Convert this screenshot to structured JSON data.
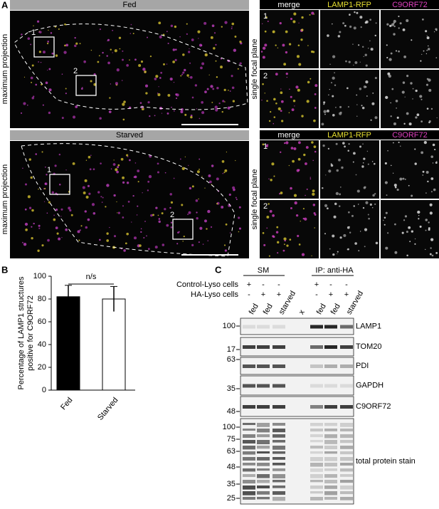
{
  "panel_labels": [
    "A",
    "B",
    "C"
  ],
  "panel_a": {
    "fed": {
      "title": "Fed",
      "side_label": "maximum projection",
      "box_labels": [
        "1",
        "2"
      ],
      "inset_headers": [
        "merge",
        "LAMP1-RFP",
        "C9ORF72"
      ],
      "inset_side_label": "single focal plane",
      "inset_numbers": [
        "1",
        "2"
      ]
    },
    "starved": {
      "title": "Starved",
      "side_label": "maximum projection",
      "box_labels": [
        "1",
        "2"
      ],
      "inset_headers": [
        "merge",
        "LAMP1-RFP",
        "C9ORF72"
      ],
      "inset_side_label": "single focal plane",
      "inset_numbers": [
        "1",
        "2"
      ]
    }
  },
  "chart_data": {
    "type": "bar",
    "ylabel": [
      "Percentage of LAMP1 structures",
      "positive for C9ORF72"
    ],
    "categories": [
      "Fed",
      "Starved"
    ],
    "values": [
      82,
      80
    ],
    "errors": [
      10,
      11
    ],
    "colors": [
      "#000000",
      "#ffffff"
    ],
    "ylim": [
      0,
      100
    ],
    "yticks": [
      0,
      20,
      40,
      60,
      80,
      100
    ],
    "annotation": "n/s"
  },
  "panel_c": {
    "groups": [
      "SM",
      "IP: anti-HA"
    ],
    "row_labels": [
      "Control-Lyso cells",
      "HA-Lyso cells"
    ],
    "control_lyso": [
      "+",
      "-",
      "-",
      "+",
      "-",
      "-"
    ],
    "ha_lyso": [
      "-",
      "+",
      "+",
      "-",
      "+",
      "+"
    ],
    "lanes": [
      "fed",
      "fed",
      "starved",
      "x",
      "fed",
      "fed",
      "starved"
    ],
    "blots": [
      {
        "label": "LAMP1",
        "markers": [
          100
        ]
      },
      {
        "label": "TOM20",
        "markers": [
          17
        ]
      },
      {
        "label": "PDI",
        "markers": [
          63
        ]
      },
      {
        "label": "GAPDH",
        "markers": [
          35
        ]
      },
      {
        "label": "C9ORF72",
        "markers": [
          48
        ]
      },
      {
        "label": "total protein stain",
        "markers": [
          100,
          75,
          63,
          48,
          35,
          25
        ]
      }
    ]
  }
}
